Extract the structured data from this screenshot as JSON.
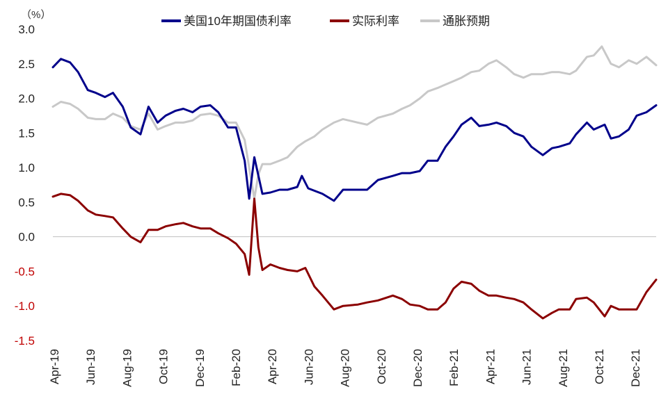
{
  "chart_data": {
    "type": "line",
    "unit_label": "（%）",
    "ylim": [
      -1.5,
      3.0
    ],
    "yticks": [
      "3.0",
      "2.5",
      "2.0",
      "1.5",
      "1.0",
      "0.5",
      "0.0",
      "-0.5",
      "-1.0",
      "-1.5"
    ],
    "ytick_values": [
      3.0,
      2.5,
      2.0,
      1.5,
      1.0,
      0.5,
      0.0,
      -0.5,
      -1.0,
      -1.5
    ],
    "negative_tick_color": "#c00000",
    "positive_tick_color": "#222222",
    "xticks": [
      "Apr-19",
      "Jun-19",
      "Aug-19",
      "Oct-19",
      "Dec-19",
      "Feb-20",
      "Apr-20",
      "Jun-20",
      "Aug-20",
      "Oct-20",
      "Dec-20",
      "Feb-21",
      "Apr-21",
      "Jun-21",
      "Aug-21",
      "Oct-21",
      "Dec-21"
    ],
    "x_start": "2019-04-01",
    "x_end": "2022-02-18",
    "grid": false,
    "legend_position": "top",
    "series": [
      {
        "name": "美国10年期国债利率",
        "color": "#00008b",
        "points": [
          [
            "2019-04-01",
            2.45
          ],
          [
            "2019-04-15",
            2.57
          ],
          [
            "2019-05-01",
            2.52
          ],
          [
            "2019-05-15",
            2.38
          ],
          [
            "2019-06-01",
            2.12
          ],
          [
            "2019-06-15",
            2.08
          ],
          [
            "2019-07-01",
            2.02
          ],
          [
            "2019-07-15",
            2.08
          ],
          [
            "2019-08-01",
            1.88
          ],
          [
            "2019-08-15",
            1.58
          ],
          [
            "2019-09-01",
            1.48
          ],
          [
            "2019-09-15",
            1.88
          ],
          [
            "2019-10-01",
            1.65
          ],
          [
            "2019-10-15",
            1.75
          ],
          [
            "2019-11-01",
            1.82
          ],
          [
            "2019-11-15",
            1.85
          ],
          [
            "2019-12-01",
            1.8
          ],
          [
            "2019-12-15",
            1.88
          ],
          [
            "2020-01-01",
            1.9
          ],
          [
            "2020-01-15",
            1.8
          ],
          [
            "2020-02-01",
            1.58
          ],
          [
            "2020-02-15",
            1.58
          ],
          [
            "2020-03-01",
            1.1
          ],
          [
            "2020-03-09",
            0.55
          ],
          [
            "2020-03-18",
            1.15
          ],
          [
            "2020-04-01",
            0.62
          ],
          [
            "2020-04-15",
            0.64
          ],
          [
            "2020-05-01",
            0.68
          ],
          [
            "2020-05-15",
            0.68
          ],
          [
            "2020-06-01",
            0.72
          ],
          [
            "2020-06-09",
            0.88
          ],
          [
            "2020-06-20",
            0.7
          ],
          [
            "2020-07-15",
            0.62
          ],
          [
            "2020-08-04",
            0.52
          ],
          [
            "2020-08-20",
            0.68
          ],
          [
            "2020-09-15",
            0.68
          ],
          [
            "2020-10-01",
            0.68
          ],
          [
            "2020-10-20",
            0.82
          ],
          [
            "2020-11-15",
            0.88
          ],
          [
            "2020-12-01",
            0.92
          ],
          [
            "2020-12-15",
            0.92
          ],
          [
            "2021-01-01",
            0.95
          ],
          [
            "2021-01-15",
            1.1
          ],
          [
            "2021-02-01",
            1.1
          ],
          [
            "2021-02-15",
            1.3
          ],
          [
            "2021-03-01",
            1.45
          ],
          [
            "2021-03-15",
            1.62
          ],
          [
            "2021-04-01",
            1.72
          ],
          [
            "2021-04-15",
            1.6
          ],
          [
            "2021-05-01",
            1.62
          ],
          [
            "2021-05-15",
            1.65
          ],
          [
            "2021-06-01",
            1.6
          ],
          [
            "2021-06-15",
            1.5
          ],
          [
            "2021-07-01",
            1.45
          ],
          [
            "2021-07-15",
            1.3
          ],
          [
            "2021-08-04",
            1.18
          ],
          [
            "2021-08-20",
            1.28
          ],
          [
            "2021-09-01",
            1.3
          ],
          [
            "2021-09-20",
            1.35
          ],
          [
            "2021-10-01",
            1.48
          ],
          [
            "2021-10-20",
            1.65
          ],
          [
            "2021-11-01",
            1.55
          ],
          [
            "2021-11-20",
            1.62
          ],
          [
            "2021-12-01",
            1.42
          ],
          [
            "2021-12-15",
            1.45
          ],
          [
            "2022-01-01",
            1.55
          ],
          [
            "2022-01-15",
            1.75
          ],
          [
            "2022-02-01",
            1.8
          ],
          [
            "2022-02-18",
            1.9
          ]
        ]
      },
      {
        "name": "实际利率",
        "color": "#8b0000",
        "points": [
          [
            "2019-04-01",
            0.58
          ],
          [
            "2019-04-15",
            0.62
          ],
          [
            "2019-05-01",
            0.6
          ],
          [
            "2019-05-15",
            0.52
          ],
          [
            "2019-06-01",
            0.38
          ],
          [
            "2019-06-15",
            0.32
          ],
          [
            "2019-07-01",
            0.3
          ],
          [
            "2019-07-15",
            0.28
          ],
          [
            "2019-08-01",
            0.12
          ],
          [
            "2019-08-15",
            0.0
          ],
          [
            "2019-09-01",
            -0.08
          ],
          [
            "2019-09-15",
            0.1
          ],
          [
            "2019-10-01",
            0.1
          ],
          [
            "2019-10-15",
            0.15
          ],
          [
            "2019-11-01",
            0.18
          ],
          [
            "2019-11-15",
            0.2
          ],
          [
            "2019-12-01",
            0.15
          ],
          [
            "2019-12-15",
            0.12
          ],
          [
            "2020-01-01",
            0.12
          ],
          [
            "2020-01-15",
            0.05
          ],
          [
            "2020-02-01",
            -0.02
          ],
          [
            "2020-02-15",
            -0.1
          ],
          [
            "2020-03-01",
            -0.25
          ],
          [
            "2020-03-09",
            -0.55
          ],
          [
            "2020-03-18",
            0.55
          ],
          [
            "2020-03-25",
            -0.15
          ],
          [
            "2020-04-01",
            -0.48
          ],
          [
            "2020-04-15",
            -0.4
          ],
          [
            "2020-05-01",
            -0.45
          ],
          [
            "2020-05-15",
            -0.48
          ],
          [
            "2020-06-01",
            -0.5
          ],
          [
            "2020-06-15",
            -0.45
          ],
          [
            "2020-07-01",
            -0.72
          ],
          [
            "2020-07-15",
            -0.85
          ],
          [
            "2020-08-04",
            -1.05
          ],
          [
            "2020-08-20",
            -1.0
          ],
          [
            "2020-09-15",
            -0.98
          ],
          [
            "2020-10-01",
            -0.95
          ],
          [
            "2020-10-20",
            -0.92
          ],
          [
            "2020-11-15",
            -0.85
          ],
          [
            "2020-12-01",
            -0.9
          ],
          [
            "2020-12-15",
            -0.98
          ],
          [
            "2021-01-01",
            -1.0
          ],
          [
            "2021-01-15",
            -1.05
          ],
          [
            "2021-02-01",
            -1.05
          ],
          [
            "2021-02-15",
            -0.95
          ],
          [
            "2021-03-01",
            -0.75
          ],
          [
            "2021-03-15",
            -0.65
          ],
          [
            "2021-04-01",
            -0.68
          ],
          [
            "2021-04-15",
            -0.78
          ],
          [
            "2021-05-01",
            -0.85
          ],
          [
            "2021-05-15",
            -0.85
          ],
          [
            "2021-06-01",
            -0.88
          ],
          [
            "2021-06-15",
            -0.9
          ],
          [
            "2021-07-01",
            -0.95
          ],
          [
            "2021-07-15",
            -1.05
          ],
          [
            "2021-08-04",
            -1.18
          ],
          [
            "2021-08-20",
            -1.1
          ],
          [
            "2021-09-01",
            -1.05
          ],
          [
            "2021-09-20",
            -1.05
          ],
          [
            "2021-10-01",
            -0.9
          ],
          [
            "2021-10-20",
            -0.88
          ],
          [
            "2021-11-01",
            -0.95
          ],
          [
            "2021-11-20",
            -1.15
          ],
          [
            "2021-12-01",
            -1.0
          ],
          [
            "2021-12-15",
            -1.05
          ],
          [
            "2022-01-01",
            -1.05
          ],
          [
            "2022-01-15",
            -1.05
          ],
          [
            "2022-02-01",
            -0.8
          ],
          [
            "2022-02-18",
            -0.62
          ]
        ]
      },
      {
        "name": "通胀预期",
        "color": "#c8c8c8",
        "points": [
          [
            "2019-04-01",
            1.88
          ],
          [
            "2019-04-15",
            1.95
          ],
          [
            "2019-05-01",
            1.92
          ],
          [
            "2019-05-15",
            1.85
          ],
          [
            "2019-06-01",
            1.72
          ],
          [
            "2019-06-15",
            1.7
          ],
          [
            "2019-07-01",
            1.7
          ],
          [
            "2019-07-15",
            1.78
          ],
          [
            "2019-08-01",
            1.72
          ],
          [
            "2019-08-15",
            1.6
          ],
          [
            "2019-09-01",
            1.55
          ],
          [
            "2019-09-15",
            1.78
          ],
          [
            "2019-10-01",
            1.55
          ],
          [
            "2019-10-15",
            1.6
          ],
          [
            "2019-11-01",
            1.65
          ],
          [
            "2019-11-15",
            1.65
          ],
          [
            "2019-12-01",
            1.68
          ],
          [
            "2019-12-15",
            1.76
          ],
          [
            "2020-01-01",
            1.78
          ],
          [
            "2020-01-15",
            1.75
          ],
          [
            "2020-02-01",
            1.65
          ],
          [
            "2020-02-15",
            1.65
          ],
          [
            "2020-03-01",
            1.4
          ],
          [
            "2020-03-09",
            1.0
          ],
          [
            "2020-03-18",
            0.55
          ],
          [
            "2020-03-25",
            0.9
          ],
          [
            "2020-04-01",
            1.05
          ],
          [
            "2020-04-15",
            1.05
          ],
          [
            "2020-05-01",
            1.1
          ],
          [
            "2020-05-15",
            1.15
          ],
          [
            "2020-06-01",
            1.3
          ],
          [
            "2020-06-15",
            1.38
          ],
          [
            "2020-07-01",
            1.45
          ],
          [
            "2020-07-15",
            1.55
          ],
          [
            "2020-08-04",
            1.65
          ],
          [
            "2020-08-20",
            1.7
          ],
          [
            "2020-09-15",
            1.65
          ],
          [
            "2020-10-01",
            1.62
          ],
          [
            "2020-10-20",
            1.72
          ],
          [
            "2020-11-15",
            1.78
          ],
          [
            "2020-12-01",
            1.85
          ],
          [
            "2020-12-15",
            1.9
          ],
          [
            "2021-01-01",
            2.0
          ],
          [
            "2021-01-15",
            2.1
          ],
          [
            "2021-02-01",
            2.15
          ],
          [
            "2021-02-15",
            2.2
          ],
          [
            "2021-03-01",
            2.25
          ],
          [
            "2021-03-15",
            2.3
          ],
          [
            "2021-04-01",
            2.38
          ],
          [
            "2021-04-15",
            2.4
          ],
          [
            "2021-05-01",
            2.5
          ],
          [
            "2021-05-15",
            2.55
          ],
          [
            "2021-06-01",
            2.45
          ],
          [
            "2021-06-15",
            2.35
          ],
          [
            "2021-07-01",
            2.3
          ],
          [
            "2021-07-15",
            2.35
          ],
          [
            "2021-08-04",
            2.35
          ],
          [
            "2021-08-20",
            2.38
          ],
          [
            "2021-09-01",
            2.38
          ],
          [
            "2021-09-20",
            2.35
          ],
          [
            "2021-10-01",
            2.4
          ],
          [
            "2021-10-20",
            2.6
          ],
          [
            "2021-11-01",
            2.62
          ],
          [
            "2021-11-15",
            2.75
          ],
          [
            "2021-12-01",
            2.5
          ],
          [
            "2021-12-15",
            2.45
          ],
          [
            "2022-01-01",
            2.55
          ],
          [
            "2022-01-15",
            2.5
          ],
          [
            "2022-02-01",
            2.6
          ],
          [
            "2022-02-18",
            2.48
          ]
        ]
      }
    ]
  }
}
